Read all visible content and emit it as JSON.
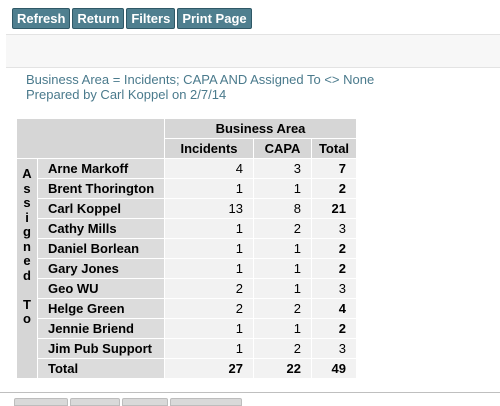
{
  "toolbar": {
    "refresh_label": "Refresh",
    "return_label": "Return",
    "filters_label": "Filters",
    "print_label": "Print Page"
  },
  "criteria": {
    "line1": "Business Area = Incidents; CAPA AND Assigned To <> None",
    "line2": "Prepared by Carl Koppel on 2/7/14"
  },
  "table": {
    "group_header": "Business Area",
    "columns": [
      "Incidents",
      "CAPA",
      "Total"
    ],
    "row_axis_label": [
      "A",
      "s",
      "s",
      "i",
      "g",
      "n",
      "e",
      "d",
      "",
      "T",
      "o"
    ],
    "rows": [
      {
        "name": "Arne Markoff",
        "incidents": "4",
        "capa": "3",
        "total": "7",
        "bold_total": true
      },
      {
        "name": "Brent Thorington",
        "incidents": "1",
        "capa": "1",
        "total": "2",
        "bold_total": true
      },
      {
        "name": "Carl Koppel",
        "incidents": "13",
        "capa": "8",
        "total": "21",
        "bold_total": true
      },
      {
        "name": "Cathy Mills",
        "incidents": "1",
        "capa": "2",
        "total": "3",
        "bold_total": false
      },
      {
        "name": "Daniel Borlean",
        "incidents": "1",
        "capa": "1",
        "total": "2",
        "bold_total": true
      },
      {
        "name": "Gary Jones",
        "incidents": "1",
        "capa": "1",
        "total": "2",
        "bold_total": true
      },
      {
        "name": "Geo WU",
        "incidents": "2",
        "capa": "1",
        "total": "3",
        "bold_total": false
      },
      {
        "name": "Helge Green",
        "incidents": "2",
        "capa": "2",
        "total": "4",
        "bold_total": true
      },
      {
        "name": "Jennie Briend",
        "incidents": "1",
        "capa": "1",
        "total": "2",
        "bold_total": true
      },
      {
        "name": "Jim Pub Support",
        "incidents": "1",
        "capa": "2",
        "total": "3",
        "bold_total": false
      }
    ],
    "total_row": {
      "name": "Total",
      "incidents": "27",
      "capa": "22",
      "total": "49"
    }
  },
  "colors": {
    "button_bg": "#4f7f8f",
    "criteria_text": "#4a7a8c",
    "header_bg": "#d6d6d6",
    "cell_bg": "#f2f2f2"
  }
}
